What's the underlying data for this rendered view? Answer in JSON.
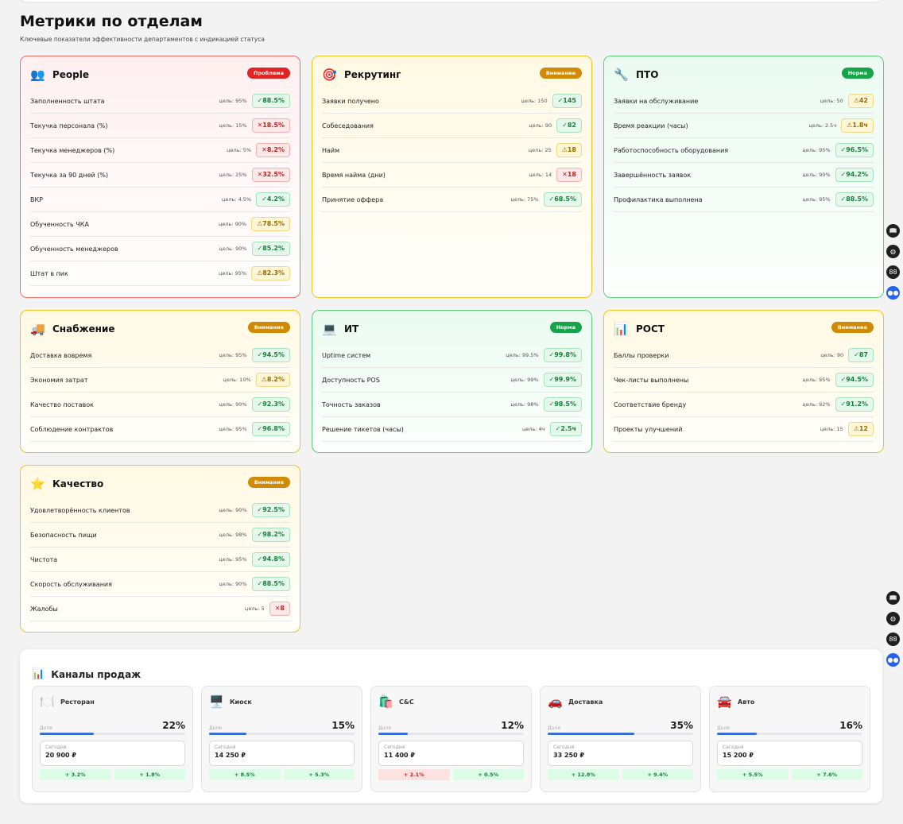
{
  "page": {
    "title": "Метрики по отделам",
    "subtitle": "Ключевые показатели эффективности департаментов с индикацией статуса"
  },
  "departments": [
    {
      "name": "People",
      "icon": "👥",
      "status": "Проблема",
      "tone": "red",
      "metrics": [
        {
          "label": "Заполненность штата",
          "target": "цель: 95%",
          "value": "✓88.5%",
          "state": "ok"
        },
        {
          "label": "Текучка персонала (%)",
          "target": "цель: 15%",
          "value": "✕18.5%",
          "state": "bad"
        },
        {
          "label": "Текучка менеджеров (%)",
          "target": "цель: 5%",
          "value": "✕8.2%",
          "state": "bad"
        },
        {
          "label": "Текучка за 90 дней (%)",
          "target": "цель: 25%",
          "value": "✕32.5%",
          "state": "bad"
        },
        {
          "label": "ВКР",
          "target": "цель: 4.5%",
          "value": "✓4.2%",
          "state": "ok"
        },
        {
          "label": "Обученность ЧКА",
          "target": "цель: 90%",
          "value": "⚠78.5%",
          "state": "warn"
        },
        {
          "label": "Обученность менеджеров",
          "target": "цель: 90%",
          "value": "✓85.2%",
          "state": "ok"
        },
        {
          "label": "Штат в пик",
          "target": "цель: 95%",
          "value": "⚠82.3%",
          "state": "warn"
        }
      ]
    },
    {
      "name": "Рекрутинг",
      "icon": "🎯",
      "status": "Внимание",
      "tone": "yellow",
      "metrics": [
        {
          "label": "Заявки получено",
          "target": "цель: 150",
          "value": "✓145",
          "state": "ok"
        },
        {
          "label": "Собеседования",
          "target": "цель: 90",
          "value": "✓82",
          "state": "ok"
        },
        {
          "label": "Найм",
          "target": "цель: 25",
          "value": "⚠18",
          "state": "warn"
        },
        {
          "label": "Время найма (дни)",
          "target": "цель: 14",
          "value": "✕18",
          "state": "bad"
        },
        {
          "label": "Принятие оффера",
          "target": "цель: 75%",
          "value": "✓68.5%",
          "state": "ok"
        }
      ]
    },
    {
      "name": "ПТО",
      "icon": "🔧",
      "status": "Норма",
      "tone": "green",
      "metrics": [
        {
          "label": "Заявки на обслуживание",
          "target": "цель: 50",
          "value": "⚠42",
          "state": "warn"
        },
        {
          "label": "Время реакции (часы)",
          "target": "цель: 2.5ч",
          "value": "⚠1.8ч",
          "state": "warn"
        },
        {
          "label": "Работоспособность оборудования",
          "target": "цель: 95%",
          "value": "✓96.5%",
          "state": "ok"
        },
        {
          "label": "Завершённость заявок",
          "target": "цель: 90%",
          "value": "✓94.2%",
          "state": "ok"
        },
        {
          "label": "Профилактика выполнена",
          "target": "цель: 95%",
          "value": "✓88.5%",
          "state": "ok"
        }
      ]
    },
    {
      "name": "Снабжение",
      "icon": "🚚",
      "status": "Внимание",
      "tone": "yellow",
      "metrics": [
        {
          "label": "Доставка вовремя",
          "target": "цель: 95%",
          "value": "✓94.5%",
          "state": "ok"
        },
        {
          "label": "Экономия затрат",
          "target": "цель: 10%",
          "value": "⚠8.2%",
          "state": "warn"
        },
        {
          "label": "Качество поставок",
          "target": "цель: 90%",
          "value": "✓92.3%",
          "state": "ok"
        },
        {
          "label": "Соблюдение контрактов",
          "target": "цель: 95%",
          "value": "✓96.8%",
          "state": "ok"
        }
      ]
    },
    {
      "name": "ИТ",
      "icon": "💻",
      "status": "Норма",
      "tone": "green",
      "metrics": [
        {
          "label": "Uptime систем",
          "target": "цель: 99.5%",
          "value": "✓99.8%",
          "state": "ok"
        },
        {
          "label": "Доступность POS",
          "target": "цель: 99%",
          "value": "✓99.9%",
          "state": "ok"
        },
        {
          "label": "Точность заказов",
          "target": "цель: 98%",
          "value": "✓98.5%",
          "state": "ok"
        },
        {
          "label": "Решение тикетов (часы)",
          "target": "цель: 4ч",
          "value": "✓2.5ч",
          "state": "ok"
        }
      ]
    },
    {
      "name": "РОСТ",
      "icon": "📊",
      "status": "Внимание",
      "tone": "yellow",
      "metrics": [
        {
          "label": "Баллы проверки",
          "target": "цель: 90",
          "value": "✓87",
          "state": "ok"
        },
        {
          "label": "Чек-листы выполнены",
          "target": "цель: 95%",
          "value": "✓94.5%",
          "state": "ok"
        },
        {
          "label": "Соответствие бренду",
          "target": "цель: 92%",
          "value": "✓91.2%",
          "state": "ok"
        },
        {
          "label": "Проекты улучшений",
          "target": "цель: 15",
          "value": "⚠12",
          "state": "warn"
        }
      ]
    },
    {
      "name": "Качество",
      "icon": "⭐",
      "status": "Внимание",
      "tone": "yellow",
      "metrics": [
        {
          "label": "Удовлетворённость клиентов",
          "target": "цель: 90%",
          "value": "✓92.5%",
          "state": "ok"
        },
        {
          "label": "Безопасность пищи",
          "target": "цель: 98%",
          "value": "✓98.2%",
          "state": "ok"
        },
        {
          "label": "Чистота",
          "target": "цель: 95%",
          "value": "✓94.8%",
          "state": "ok"
        },
        {
          "label": "Скорость обслуживания",
          "target": "цель: 90%",
          "value": "✓88.5%",
          "state": "ok"
        },
        {
          "label": "Жалобы",
          "target": "цель: 5",
          "value": "✕8",
          "state": "bad"
        }
      ]
    }
  ],
  "channels": {
    "title": "Каналы продаж",
    "icon": "📊",
    "share_label": "Доля",
    "today_label": "Сегодня",
    "items": [
      {
        "name": "Ресторан",
        "icon": "🍽️",
        "share": "22%",
        "share_fraction": 0.22,
        "today": "20 900 ₽",
        "delta1": "+ 3.2%",
        "delta1_state": "pos",
        "delta2": "+ 1.8%",
        "delta2_state": "pos"
      },
      {
        "name": "Киоск",
        "icon": "🖥️",
        "share": "15%",
        "share_fraction": 0.15,
        "today": "14 250 ₽",
        "delta1": "+ 8.5%",
        "delta1_state": "pos",
        "delta2": "+ 5.3%",
        "delta2_state": "pos"
      },
      {
        "name": "C&C",
        "icon": "🛍️",
        "share": "12%",
        "share_fraction": 0.12,
        "today": "11 400 ₽",
        "delta1": "+ 2.1%",
        "delta1_state": "neg",
        "delta2": "+ 0.5%",
        "delta2_state": "pos"
      },
      {
        "name": "Доставка",
        "icon": "🚗",
        "share": "35%",
        "share_fraction": 0.35,
        "today": "33 250 ₽",
        "delta1": "+ 12.8%",
        "delta1_state": "pos",
        "delta2": "+ 9.4%",
        "delta2_state": "pos"
      },
      {
        "name": "Авто",
        "icon": "🚘",
        "share": "16%",
        "share_fraction": 0.16,
        "today": "15 200 ₽",
        "delta1": "+ 5.5%",
        "delta1_state": "pos",
        "delta2": "+ 7.6%",
        "delta2_state": "pos"
      }
    ]
  },
  "side_tools": [
    {
      "name": "book-icon",
      "glyph": "📖"
    },
    {
      "name": "globe-icon",
      "glyph": "◍"
    },
    {
      "name": "grid-icon",
      "glyph": "88"
    },
    {
      "name": "assistant-icon",
      "glyph": "●●"
    }
  ],
  "colors": {
    "red_border": "#f06a6a",
    "yellow_border": "#f3c21c",
    "green_border": "#5dd07f",
    "pill_red": "#e02424",
    "pill_yellow": "#d08a06",
    "pill_green": "#16a34a",
    "share_bar": "#3b6fd8"
  }
}
